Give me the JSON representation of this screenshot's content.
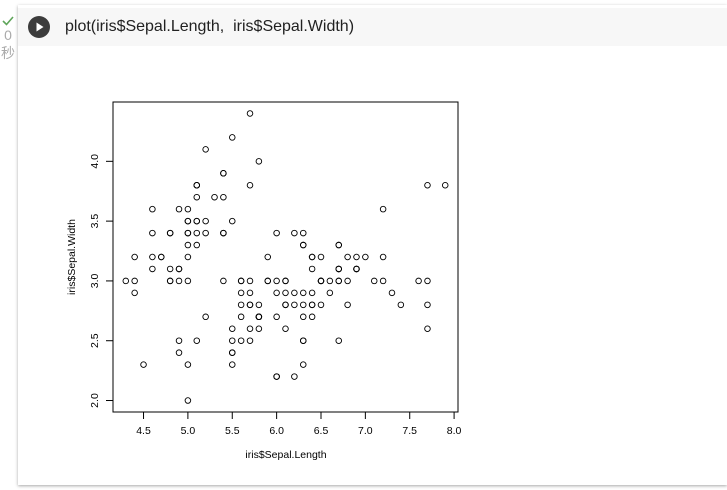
{
  "cell": {
    "code": "plot(iris$Sepal.Length,  iris$Sepal.Width)",
    "exec_time": "0",
    "exec_unit": "秒"
  },
  "chart_data": {
    "type": "scatter",
    "xlabel": "iris$Sepal.Length",
    "ylabel": "iris$Sepal.Width",
    "x": [
      5.1,
      4.9,
      4.7,
      4.6,
      5.0,
      5.4,
      4.6,
      5.0,
      4.4,
      4.9,
      5.4,
      4.8,
      4.8,
      4.3,
      5.8,
      5.7,
      5.4,
      5.1,
      5.7,
      5.1,
      5.4,
      5.1,
      4.6,
      5.1,
      4.8,
      5.0,
      5.0,
      5.2,
      5.2,
      4.7,
      4.8,
      5.4,
      5.2,
      5.5,
      4.9,
      5.0,
      5.5,
      4.9,
      4.4,
      5.1,
      5.0,
      4.5,
      4.4,
      5.0,
      5.1,
      4.8,
      5.1,
      4.6,
      5.3,
      5.0,
      7.0,
      6.4,
      6.9,
      5.5,
      6.5,
      5.7,
      6.3,
      4.9,
      6.6,
      5.2,
      5.0,
      5.9,
      6.0,
      6.1,
      5.6,
      6.7,
      5.6,
      5.8,
      6.2,
      5.6,
      5.9,
      6.1,
      6.3,
      6.1,
      6.4,
      6.6,
      6.8,
      6.7,
      6.0,
      5.7,
      5.5,
      5.5,
      5.8,
      6.0,
      5.4,
      6.0,
      6.7,
      6.3,
      5.6,
      5.5,
      5.5,
      6.1,
      5.8,
      5.0,
      5.6,
      5.7,
      5.7,
      6.2,
      5.1,
      5.7,
      6.3,
      5.8,
      7.1,
      6.3,
      6.5,
      7.6,
      4.9,
      7.3,
      6.7,
      7.2,
      6.5,
      6.4,
      6.8,
      5.7,
      5.8,
      6.4,
      6.5,
      7.7,
      7.7,
      6.0,
      6.9,
      5.6,
      7.7,
      6.3,
      6.7,
      7.2,
      6.2,
      6.1,
      6.4,
      7.2,
      7.4,
      7.9,
      6.4,
      6.3,
      6.1,
      7.7,
      6.3,
      6.4,
      6.0,
      6.9,
      6.7,
      6.9,
      5.8,
      6.8,
      6.7,
      6.7,
      6.3,
      6.5,
      6.2,
      5.9
    ],
    "values": [
      3.5,
      3.0,
      3.2,
      3.1,
      3.6,
      3.9,
      3.4,
      3.4,
      2.9,
      3.1,
      3.7,
      3.4,
      3.0,
      3.0,
      4.0,
      4.4,
      3.9,
      3.5,
      3.8,
      3.8,
      3.4,
      3.7,
      3.6,
      3.3,
      3.4,
      3.0,
      3.4,
      3.5,
      3.4,
      3.2,
      3.1,
      3.4,
      4.1,
      4.2,
      3.1,
      3.2,
      3.5,
      3.6,
      3.0,
      3.4,
      3.5,
      2.3,
      3.2,
      3.5,
      3.8,
      3.0,
      3.8,
      3.2,
      3.7,
      3.3,
      3.2,
      3.2,
      3.1,
      2.3,
      2.8,
      2.8,
      3.3,
      2.4,
      2.9,
      2.7,
      2.0,
      3.0,
      2.2,
      2.9,
      2.9,
      3.1,
      3.0,
      2.7,
      2.2,
      2.5,
      3.2,
      2.8,
      2.5,
      2.8,
      2.9,
      3.0,
      2.8,
      3.0,
      2.9,
      2.6,
      2.4,
      2.4,
      2.7,
      2.7,
      3.0,
      3.4,
      3.1,
      2.3,
      3.0,
      2.5,
      2.6,
      3.0,
      2.6,
      2.3,
      2.7,
      3.0,
      2.9,
      2.9,
      2.5,
      2.8,
      3.3,
      2.7,
      3.0,
      2.9,
      3.0,
      3.0,
      2.5,
      2.9,
      2.5,
      3.6,
      3.2,
      2.7,
      3.0,
      2.5,
      2.8,
      3.2,
      3.0,
      3.8,
      2.6,
      2.2,
      3.2,
      2.8,
      2.8,
      2.7,
      3.3,
      3.2,
      2.8,
      3.0,
      2.8,
      3.0,
      2.8,
      3.8,
      2.8,
      2.8,
      2.6,
      3.0,
      3.4,
      3.1,
      3.0,
      3.1,
      3.1,
      3.1,
      2.7,
      3.2,
      3.3,
      3.0,
      2.5,
      3.0,
      3.4,
      3.0
    ],
    "xlim": [
      4.156,
      8.044
    ],
    "ylim": [
      1.904,
      4.496
    ],
    "xticks": [
      4.5,
      {
        "value": 5.0,
        "label": "5.0"
      },
      5.5,
      {
        "value": 6.0,
        "label": "6.0"
      },
      6.5,
      {
        "value": 7.0,
        "label": "7.0"
      },
      7.5,
      {
        "value": 8.0,
        "label": "8.0"
      }
    ],
    "yticks": [
      {
        "value": 2.0,
        "label": "2.0"
      },
      2.5,
      {
        "value": 3.0,
        "label": "3.0"
      },
      3.5,
      {
        "value": 4.0,
        "label": "4.0"
      }
    ],
    "color": "#000000"
  }
}
